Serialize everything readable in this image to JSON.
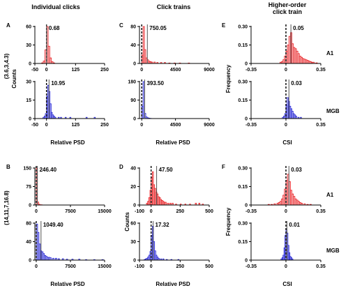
{
  "figure": {
    "column_titles": [
      "Individual clicks",
      "Click trains",
      "Higher-order",
      "click train"
    ],
    "row_labels": [
      "(3.6,3,4.3)",
      "(14,11,7,16.8)"
    ],
    "area_labels": [
      "A1",
      "MGB",
      "A1",
      "MGB"
    ],
    "y_labels": [
      "Counts",
      "Counts",
      "Frequency",
      "Frequency"
    ],
    "x_labels": [
      "Relative PSD",
      "Relative PSD",
      "CSI",
      "Relative PSD",
      "Relative PSD",
      "CSI"
    ],
    "panel_letters": [
      "A",
      "C",
      "E",
      "B",
      "D",
      "F"
    ]
  },
  "colors": {
    "A1": "#e8191d",
    "MGB": "#1f1fd2",
    "dashed_line": "#000000",
    "solid_line": "#555555"
  },
  "chart_data": [
    {
      "id": "A-top",
      "type": "bar",
      "panel": "A",
      "area": "A1",
      "annotation": "0.68",
      "xlim": [
        -50,
        250
      ],
      "xticks": [
        -50,
        0,
        125,
        250
      ],
      "xtick_labels": [
        "-50",
        "0",
        "125",
        "250"
      ],
      "ylim": [
        0,
        60
      ],
      "yticks": [
        0,
        30,
        60
      ],
      "ytick_labels": [
        "0",
        "30",
        "60"
      ],
      "bin_width": 7,
      "dashed_x": 0,
      "solid_x": 0.68,
      "x": [
        -21,
        -14,
        -7,
        0,
        7,
        14,
        21,
        28
      ],
      "values": [
        1,
        4,
        22,
        60,
        28,
        9,
        3,
        1
      ]
    },
    {
      "id": "A-bottom",
      "type": "bar",
      "panel": "A",
      "area": "MGB",
      "annotation": "10.95",
      "xlim": [
        -50,
        250
      ],
      "xticks": [
        -50,
        0,
        125,
        250
      ],
      "xtick_labels": [
        "-50",
        "0",
        "125",
        "250"
      ],
      "ylim": [
        0,
        30
      ],
      "yticks": [
        0,
        15,
        30
      ],
      "ytick_labels": [
        "0",
        "15",
        "30"
      ],
      "bin_width": 5,
      "dashed_x": 0,
      "solid_x": 10.95,
      "x": [
        -15,
        -10,
        -5,
        0,
        5,
        10,
        15,
        20,
        25,
        30,
        35,
        50,
        60,
        80,
        100,
        170,
        205
      ],
      "values": [
        1,
        2,
        4,
        18,
        27,
        22,
        12,
        5,
        3,
        2,
        1,
        1,
        1,
        1,
        1,
        1,
        1
      ]
    },
    {
      "id": "C-top",
      "type": "bar",
      "panel": "C",
      "area": "A1",
      "annotation": "750.05",
      "xlim": [
        -300,
        9000
      ],
      "xticks": [
        0,
        4500,
        9000
      ],
      "xtick_labels": [
        "0",
        "4500",
        "9000"
      ],
      "ylim": [
        0,
        80
      ],
      "yticks": [
        0,
        40,
        80
      ],
      "ytick_labels": [
        "0",
        "40",
        "80"
      ],
      "bin_width": 180,
      "dashed_x": 0,
      "solid_x": 750.05,
      "x": [
        0,
        180,
        360,
        540,
        720,
        900,
        1080,
        1260,
        1620,
        2000,
        2500,
        3000,
        3600,
        4300,
        5000,
        6200
      ],
      "values": [
        18,
        80,
        30,
        12,
        8,
        5,
        4,
        3,
        3,
        2,
        2,
        2,
        1,
        1,
        1,
        1
      ]
    },
    {
      "id": "C-bottom",
      "type": "bar",
      "panel": "C",
      "area": "MGB",
      "annotation": "393.50",
      "xlim": [
        -300,
        9000
      ],
      "xticks": [
        0,
        4500,
        9000
      ],
      "xtick_labels": [
        "0",
        "4500",
        "9000"
      ],
      "ylim": [
        0,
        180
      ],
      "yticks": [
        0,
        90,
        180
      ],
      "ytick_labels": [
        "0",
        "90",
        "180"
      ],
      "bin_width": 180,
      "dashed_x": 0,
      "solid_x": 393.5,
      "x": [
        0,
        180,
        360,
        540,
        720,
        900,
        1080
      ],
      "values": [
        60,
        180,
        25,
        8,
        4,
        2,
        1
      ]
    },
    {
      "id": "E-top",
      "type": "bar",
      "panel": "E",
      "area": "A1",
      "annotation": "0.05",
      "xlim": [
        -0.35,
        0.35
      ],
      "xticks": [
        -0.35,
        0,
        0.35
      ],
      "xtick_labels": [
        "-0.35",
        "0",
        "0.35"
      ],
      "ylim": [
        0,
        0.3
      ],
      "yticks": [
        0,
        0.15,
        0.3
      ],
      "ytick_labels": [
        "0",
        "0.15",
        "0.30"
      ],
      "bin_width": 0.015,
      "dashed_x": 0,
      "solid_x": 0.05,
      "x": [
        -0.06,
        -0.045,
        -0.03,
        -0.015,
        0,
        0.015,
        0.03,
        0.045,
        0.06,
        0.075,
        0.09,
        0.105,
        0.12,
        0.135,
        0.15,
        0.165,
        0.18,
        0.195,
        0.21,
        0.225,
        0.24,
        0.255,
        0.27,
        0.3
      ],
      "values": [
        0.01,
        0.015,
        0.03,
        0.06,
        0.1,
        0.15,
        0.22,
        0.25,
        0.16,
        0.13,
        0.12,
        0.1,
        0.08,
        0.06,
        0.05,
        0.04,
        0.035,
        0.03,
        0.025,
        0.02,
        0.015,
        0.01,
        0.01,
        0.005
      ]
    },
    {
      "id": "E-bottom",
      "type": "bar",
      "panel": "E",
      "area": "MGB",
      "annotation": "0.03",
      "xlim": [
        -0.35,
        0.35
      ],
      "xticks": [
        -0.35,
        0,
        0.35
      ],
      "xtick_labels": [
        "-0.35",
        "0",
        "0.35"
      ],
      "ylim": [
        0,
        0.3
      ],
      "yticks": [
        0,
        0.15,
        0.3
      ],
      "ytick_labels": [
        "0",
        "0.15",
        "0.30"
      ],
      "bin_width": 0.012,
      "dashed_x": 0,
      "solid_x": 0.03,
      "x": [
        -0.036,
        -0.024,
        -0.012,
        0,
        0.012,
        0.024,
        0.036,
        0.048,
        0.06,
        0.072,
        0.084,
        0.096,
        0.12,
        0.144
      ],
      "values": [
        0.01,
        0.02,
        0.04,
        0.11,
        0.17,
        0.14,
        0.1,
        0.08,
        0.06,
        0.04,
        0.03,
        0.02,
        0.01,
        0.01
      ]
    },
    {
      "id": "B-top",
      "type": "bar",
      "panel": "B",
      "area": "A1",
      "annotation": "246.40",
      "xlim": [
        -300,
        15000
      ],
      "xticks": [
        0,
        7500,
        15000
      ],
      "xtick_labels": [
        "0",
        "7500",
        "15000"
      ],
      "ylim": [
        0,
        150
      ],
      "yticks": [
        0,
        75,
        150
      ],
      "ytick_labels": [
        "0",
        "75",
        "150"
      ],
      "bin_width": 260,
      "dashed_x": 0,
      "solid_x": 246.4,
      "x": [
        0,
        260,
        520,
        780,
        1040
      ],
      "values": [
        150,
        12,
        3,
        1,
        1
      ]
    },
    {
      "id": "B-bottom",
      "type": "bar",
      "panel": "B",
      "area": "MGB",
      "annotation": "1049.40",
      "xlim": [
        -300,
        15000
      ],
      "xticks": [
        0,
        7500,
        15000
      ],
      "xtick_labels": [
        "0",
        "7500",
        "15000"
      ],
      "ylim": [
        0,
        80
      ],
      "yticks": [
        0,
        40,
        80
      ],
      "ytick_labels": [
        "0",
        "40",
        "80"
      ],
      "bin_width": 300,
      "dashed_x": 0,
      "solid_x": 1049.4,
      "x": [
        0,
        300,
        600,
        900,
        1200,
        1500,
        1800,
        2100,
        2400,
        2700,
        3000,
        3600,
        4200,
        4800,
        5700,
        6600,
        7800,
        9300,
        10800,
        12600,
        14400
      ],
      "values": [
        78,
        60,
        35,
        20,
        18,
        14,
        10,
        8,
        6,
        6,
        5,
        4,
        4,
        3,
        3,
        2,
        2,
        2,
        1,
        1,
        1
      ]
    },
    {
      "id": "D-top",
      "type": "bar",
      "panel": "D",
      "area": "A1",
      "annotation": "47.50",
      "xlim": [
        -100,
        500
      ],
      "xticks": [
        -100,
        0,
        250,
        500
      ],
      "xtick_labels": [
        "-100",
        "0",
        "250",
        "500"
      ],
      "ylim": [
        0,
        40
      ],
      "yticks": [
        0,
        20,
        40
      ],
      "ytick_labels": [
        "0",
        "20",
        "40"
      ],
      "bin_width": 10,
      "dashed_x": 0,
      "solid_x": 47.5,
      "x": [
        -40,
        -30,
        -20,
        -10,
        0,
        10,
        20,
        30,
        40,
        50,
        60,
        70,
        80,
        90,
        100,
        110,
        120,
        140,
        160,
        180,
        210,
        250,
        290,
        330,
        380,
        410,
        440
      ],
      "values": [
        2,
        4,
        8,
        16,
        30,
        36,
        22,
        18,
        14,
        12,
        9,
        8,
        6,
        5,
        4,
        3,
        3,
        2,
        2,
        2,
        1,
        1,
        1,
        1,
        2,
        2,
        1
      ]
    },
    {
      "id": "D-bottom",
      "type": "bar",
      "panel": "D",
      "area": "MGB",
      "annotation": "17.32",
      "xlim": [
        -100,
        500
      ],
      "xticks": [
        -100,
        0,
        250,
        500
      ],
      "xtick_labels": [
        "-100",
        "0",
        "250",
        "500"
      ],
      "ylim": [
        0,
        60
      ],
      "yticks": [
        0,
        30,
        60
      ],
      "ytick_labels": [
        "0",
        "30",
        "60"
      ],
      "bin_width": 10,
      "dashed_x": 0,
      "solid_x": 17.32,
      "x": [
        -60,
        -50,
        -40,
        -30,
        -20,
        -10,
        0,
        10,
        20,
        30,
        40,
        50,
        60,
        80,
        100,
        130,
        170,
        230
      ],
      "values": [
        1,
        2,
        3,
        5,
        8,
        14,
        40,
        55,
        30,
        15,
        8,
        5,
        3,
        2,
        2,
        1,
        1,
        1
      ]
    },
    {
      "id": "F-top",
      "type": "bar",
      "panel": "F",
      "area": "A1",
      "annotation": "0.03",
      "xlim": [
        -0.35,
        0.35
      ],
      "xticks": [
        -0.35,
        0,
        0.35
      ],
      "xtick_labels": [
        "-0.35",
        "0",
        "0.35"
      ],
      "ylim": [
        0,
        0.3
      ],
      "yticks": [
        0,
        0.15,
        0.3
      ],
      "ytick_labels": [
        "0",
        "0.15",
        "0.30"
      ],
      "bin_width": 0.015,
      "dashed_x": 0,
      "solid_x": 0.03,
      "x": [
        -0.18,
        -0.15,
        -0.12,
        -0.09,
        -0.075,
        -0.06,
        -0.045,
        -0.03,
        -0.015,
        0,
        0.015,
        0.03,
        0.045,
        0.06,
        0.075,
        0.09,
        0.105,
        0.12,
        0.135,
        0.15,
        0.18,
        0.21,
        0.24
      ],
      "values": [
        0.005,
        0.005,
        0.01,
        0.015,
        0.02,
        0.03,
        0.05,
        0.08,
        0.13,
        0.2,
        0.25,
        0.19,
        0.12,
        0.09,
        0.07,
        0.05,
        0.04,
        0.03,
        0.02,
        0.015,
        0.01,
        0.005,
        0.005
      ]
    },
    {
      "id": "F-bottom",
      "type": "bar",
      "panel": "F",
      "area": "MGB",
      "annotation": "0.01",
      "xlim": [
        -0.35,
        0.35
      ],
      "xticks": [
        -0.35,
        0,
        0.35
      ],
      "xtick_labels": [
        "-0.35",
        "0",
        "0.35"
      ],
      "ylim": [
        0,
        0.3
      ],
      "yticks": [
        0,
        0.15,
        0.3
      ],
      "ytick_labels": [
        "0",
        "0.15",
        "0.30"
      ],
      "bin_width": 0.01,
      "dashed_x": 0,
      "solid_x": 0.01,
      "x": [
        -0.05,
        -0.04,
        -0.03,
        -0.02,
        -0.01,
        0,
        0.01,
        0.02,
        0.03,
        0.04,
        0.05,
        0.06
      ],
      "values": [
        0.01,
        0.02,
        0.04,
        0.1,
        0.2,
        0.25,
        0.22,
        0.12,
        0.06,
        0.03,
        0.02,
        0.01
      ]
    }
  ]
}
